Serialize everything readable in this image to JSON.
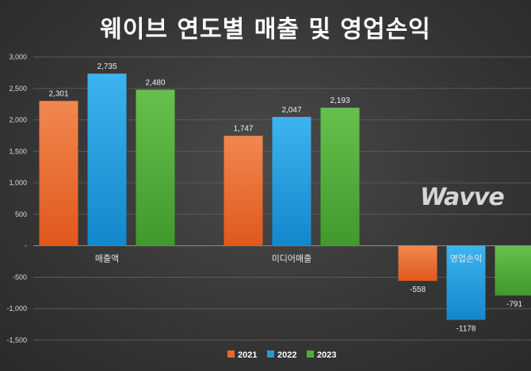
{
  "title": "웨이브 연도별 매출 및 영업손익",
  "logo_text": "Wavve",
  "chart_data": {
    "type": "bar",
    "title": "웨이브 연도별 매출 및 영업손익",
    "categories": [
      "매출액",
      "미디어매출",
      "영업손익"
    ],
    "series": [
      {
        "name": "2021",
        "values": [
          2301,
          1747,
          -558
        ],
        "labels": [
          "2,301",
          "1,747",
          "-558"
        ],
        "color": "#e8682a"
      },
      {
        "name": "2022",
        "values": [
          2735,
          2047,
          -1178
        ],
        "labels": [
          "2,735",
          "2,047",
          "-1178"
        ],
        "color": "#1f9bdc"
      },
      {
        "name": "2023",
        "values": [
          2480,
          2193,
          -791
        ],
        "labels": [
          "2,480",
          "2,193",
          "-791"
        ],
        "color": "#52ad3a"
      }
    ],
    "ylim": [
      -1500,
      3000
    ],
    "yticks": [
      -1500,
      -1000,
      -500,
      0,
      500,
      1000,
      1500,
      2000,
      2500,
      3000
    ],
    "ytick_labels": [
      "-1,500",
      "-1,000",
      "-500",
      "-",
      "500",
      "1,000",
      "1,500",
      "2,000",
      "2,500",
      "3,000"
    ],
    "grid": true,
    "legend": "bottom-center",
    "xlabel": "",
    "ylabel": ""
  }
}
